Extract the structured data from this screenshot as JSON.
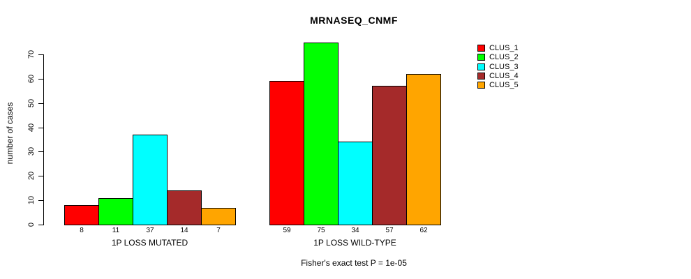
{
  "chart_data": {
    "type": "bar",
    "title": "MRNASEQ_CNMF",
    "ylabel": "number of cases",
    "xlabel": "",
    "annotation": "Fisher's exact test P = 1e-05",
    "categories": [
      "CLUS_1",
      "CLUS_2",
      "CLUS_3",
      "CLUS_4",
      "CLUS_5"
    ],
    "series": [
      {
        "name": "1P LOSS MUTATED",
        "values": [
          8,
          11,
          37,
          14,
          7
        ]
      },
      {
        "name": "1P LOSS WILD-TYPE",
        "values": [
          59,
          75,
          34,
          57,
          62
        ]
      }
    ],
    "colors": [
      "#FF0000",
      "#00FF00",
      "#00FFFF",
      "#A52A2A",
      "#FFA500"
    ],
    "ylim": [
      0,
      70
    ],
    "yticks": [
      0,
      10,
      20,
      30,
      40,
      50,
      60,
      70
    ],
    "bar_value_labels": true,
    "grid": false,
    "legend_position": "right-outside-top"
  }
}
